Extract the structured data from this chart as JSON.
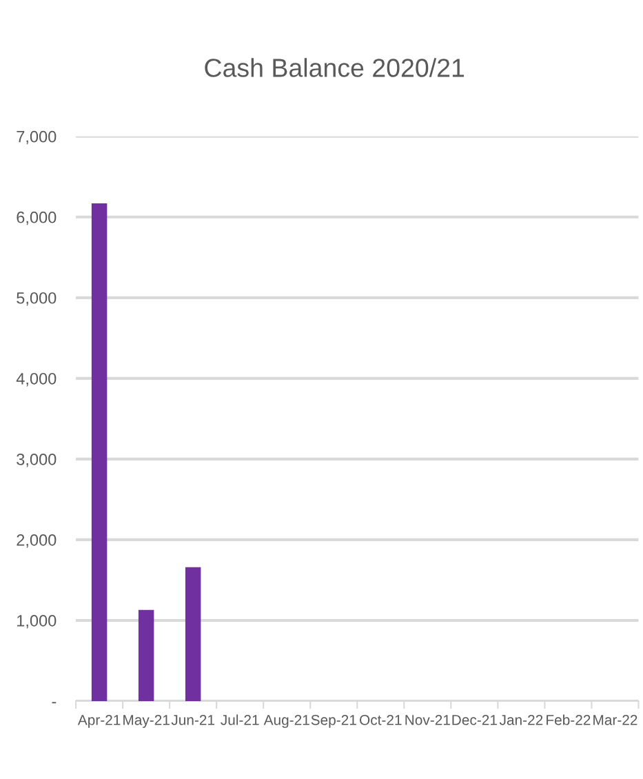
{
  "chart_data": {
    "type": "bar",
    "title": "Cash Balance 2020/21",
    "categories": [
      "Apr-21",
      "May-21",
      "Jun-21",
      "Jul-21",
      "Aug-21",
      "Sep-21",
      "Oct-21",
      "Nov-21",
      "Dec-21",
      "Jan-22",
      "Feb-22",
      "Mar-22"
    ],
    "values": [
      6170,
      1130,
      1660,
      null,
      null,
      null,
      null,
      null,
      null,
      null,
      null,
      null
    ],
    "color": "#7030a0",
    "ylim": [
      0,
      7000
    ],
    "yticks": [
      {
        "value": 0,
        "label": "-"
      },
      {
        "value": 1000,
        "label": "1,000"
      },
      {
        "value": 2000,
        "label": "2,000"
      },
      {
        "value": 3000,
        "label": "3,000"
      },
      {
        "value": 4000,
        "label": "4,000"
      },
      {
        "value": 5000,
        "label": "5,000"
      },
      {
        "value": 6000,
        "label": "6,000"
      },
      {
        "value": 7000,
        "label": "7,000"
      }
    ],
    "grid": "y",
    "legend": false
  }
}
